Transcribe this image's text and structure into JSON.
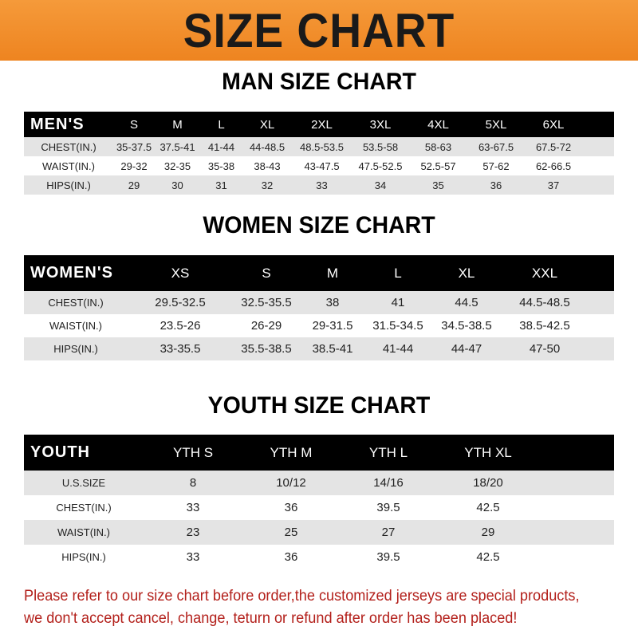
{
  "banner": "SIZE CHART",
  "men": {
    "title": "MAN SIZE CHART",
    "header": "MEN'S",
    "sizes": [
      "S",
      "M",
      "L",
      "XL",
      "2XL",
      "3XL",
      "4XL",
      "5XL",
      "6XL"
    ],
    "rows": [
      {
        "label": "CHEST(IN.)",
        "values": [
          "35-37.5",
          "37.5-41",
          "41-44",
          "44-48.5",
          "48.5-53.5",
          "53.5-58",
          "58-63",
          "63-67.5",
          "67.5-72"
        ]
      },
      {
        "label": "WAIST(IN.)",
        "values": [
          "29-32",
          "32-35",
          "35-38",
          "38-43",
          "43-47.5",
          "47.5-52.5",
          "52.5-57",
          "57-62",
          "62-66.5"
        ]
      },
      {
        "label": "HIPS(IN.)",
        "values": [
          "29",
          "30",
          "31",
          "32",
          "33",
          "34",
          "35",
          "36",
          "37"
        ]
      }
    ]
  },
  "women": {
    "title": "WOMEN SIZE CHART",
    "header": "WOMEN'S",
    "sizes": [
      "XS",
      "S",
      "M",
      "L",
      "XL",
      "XXL"
    ],
    "rows": [
      {
        "label": "CHEST(IN.)",
        "values": [
          "29.5-32.5",
          "32.5-35.5",
          "38",
          "41",
          "44.5",
          "44.5-48.5"
        ]
      },
      {
        "label": "WAIST(IN.)",
        "values": [
          "23.5-26",
          "26-29",
          "29-31.5",
          "31.5-34.5",
          "34.5-38.5",
          "38.5-42.5"
        ]
      },
      {
        "label": "HIPS(IN.)",
        "values": [
          "33-35.5",
          "35.5-38.5",
          "38.5-41",
          "41-44",
          "44-47",
          "47-50"
        ]
      }
    ]
  },
  "youth": {
    "title": "YOUTH SIZE CHART",
    "header": "YOUTH",
    "sizes": [
      "YTH S",
      "YTH M",
      "YTH L",
      "YTH XL"
    ],
    "rows": [
      {
        "label": "U.S.SIZE",
        "values": [
          "8",
          "10/12",
          "14/16",
          "18/20"
        ]
      },
      {
        "label": "CHEST(IN.)",
        "values": [
          "33",
          "36",
          "39.5",
          "42.5"
        ]
      },
      {
        "label": "WAIST(IN.)",
        "values": [
          "23",
          "25",
          "27",
          "29"
        ]
      },
      {
        "label": "HIPS(IN.)",
        "values": [
          "33",
          "36",
          "39.5",
          "42.5"
        ]
      }
    ]
  },
  "note": [
    "Please refer to our size chart before order,the customized jerseys are special products,",
    "we don't accept cancel, change, teturn or refund after order has been placed!"
  ],
  "colors": {
    "banner": "#ee8420",
    "note": "#b3201b",
    "header_row": "#000000",
    "shaded_row": "#e4e4e4"
  }
}
